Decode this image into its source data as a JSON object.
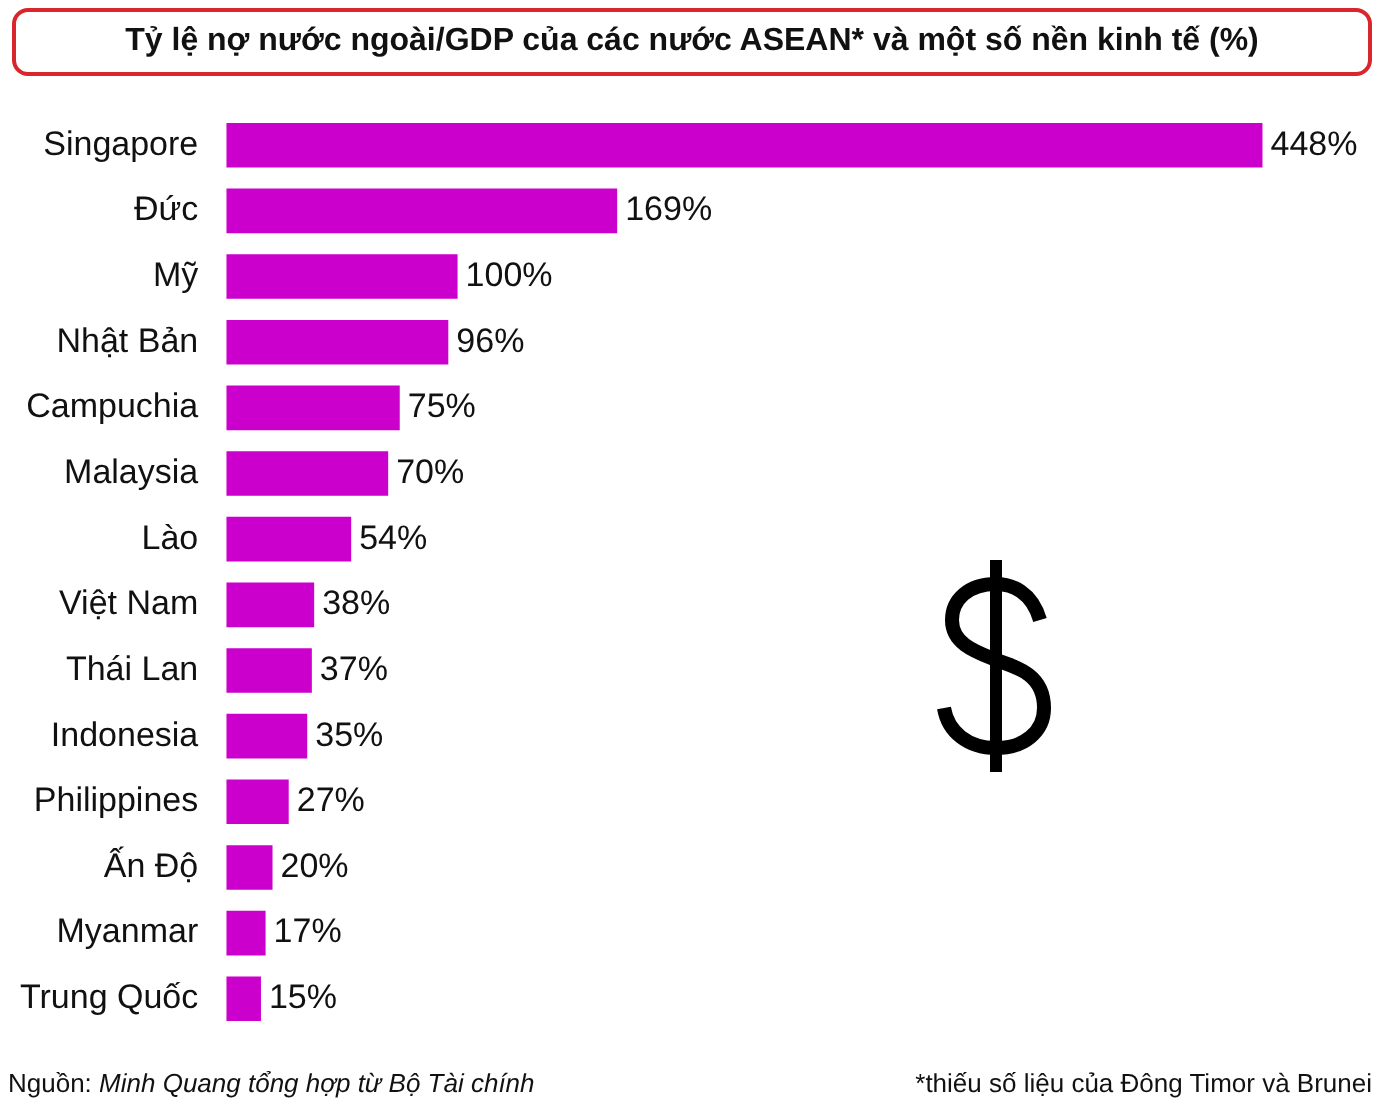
{
  "chart_data": {
    "type": "bar",
    "orientation": "horizontal",
    "title": "Tỷ lệ nợ nước ngoài/GDP của các nước ASEAN* và một số nền kinh tế (%)",
    "categories": [
      "Singapore",
      "Đức",
      "Mỹ",
      "Nhật Bản",
      "Campuchia",
      "Malaysia",
      "Lào",
      "Việt Nam",
      "Thái Lan",
      "Indonesia",
      "Philippines",
      "Ấn Độ",
      "Myanmar",
      "Trung Quốc"
    ],
    "values": [
      448,
      169,
      100,
      96,
      75,
      70,
      54,
      38,
      37,
      35,
      27,
      20,
      17,
      15
    ],
    "value_labels": [
      "448%",
      "169%",
      "100%",
      "96%",
      "75%",
      "70%",
      "54%",
      "38%",
      "37%",
      "35%",
      "27%",
      "20%",
      "17%",
      "15%"
    ],
    "color": "#cc00cc",
    "annotations": [
      "Nguồn:",
      "Minh Quang tổng hợp từ Bộ Tài chính",
      "*thiếu số liệu của Đông Timor và Brunei"
    ]
  }
}
